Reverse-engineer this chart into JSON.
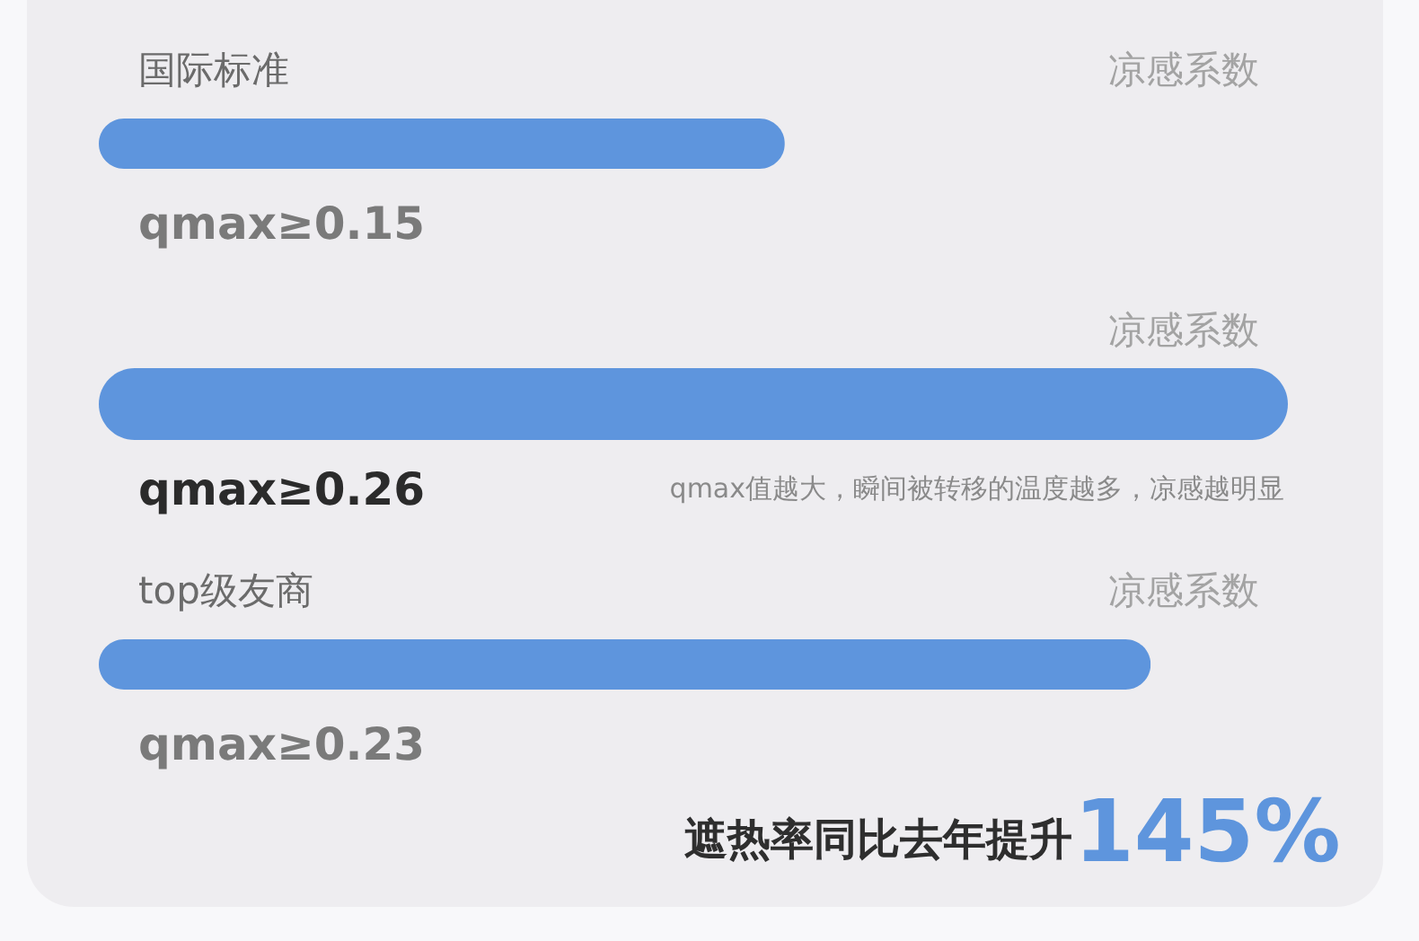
{
  "chart_data": {
    "type": "bar",
    "orientation": "horizontal",
    "categories": [
      "国际标准",
      null,
      "top级友商"
    ],
    "values": [
      0.15,
      0.26,
      0.23
    ],
    "value_labels": [
      "qmax≥0.15",
      "qmax≥0.26",
      "qmax≥0.23"
    ],
    "color": "#5e95dd",
    "xlabel": "凉感系数",
    "annotations": [
      "qmax值越大，瞬间被转移的温度越多，凉感越明显",
      "遮热率同比去年提升",
      "145%"
    ]
  }
}
